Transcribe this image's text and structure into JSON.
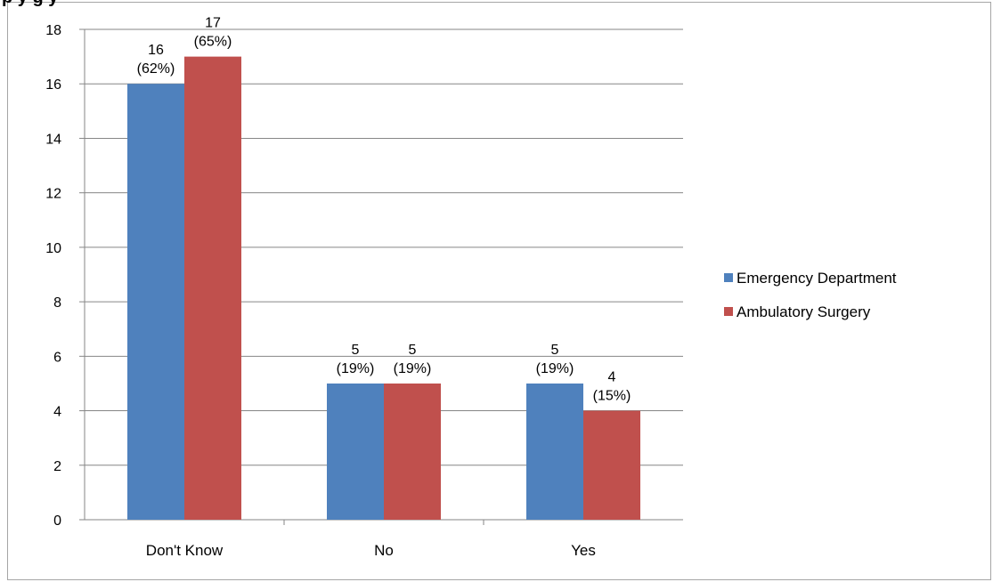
{
  "chart_data": {
    "type": "bar",
    "title": "",
    "title_visible_fragment": "p                    y  g  y",
    "categories": [
      "Don't Know",
      "No",
      "Yes"
    ],
    "series": [
      {
        "name": "Emergency Department",
        "color": "#4f81bd",
        "values": [
          16,
          5,
          5
        ],
        "labels": [
          [
            "16",
            "(62%)"
          ],
          [
            "5",
            "(19%)"
          ],
          [
            "5",
            "(19%)"
          ]
        ]
      },
      {
        "name": "Ambulatory Surgery",
        "color": "#c0504d",
        "values": [
          17,
          5,
          4
        ],
        "labels": [
          [
            "17",
            "(65%)"
          ],
          [
            "5",
            "(19%)"
          ],
          [
            "4",
            "(15%)"
          ]
        ]
      }
    ],
    "ylim": [
      0,
      18
    ],
    "yticks": [
      "0",
      "2",
      "4",
      "6",
      "8",
      "10",
      "12",
      "14",
      "16",
      "18"
    ],
    "grid": true,
    "legend": "right"
  }
}
